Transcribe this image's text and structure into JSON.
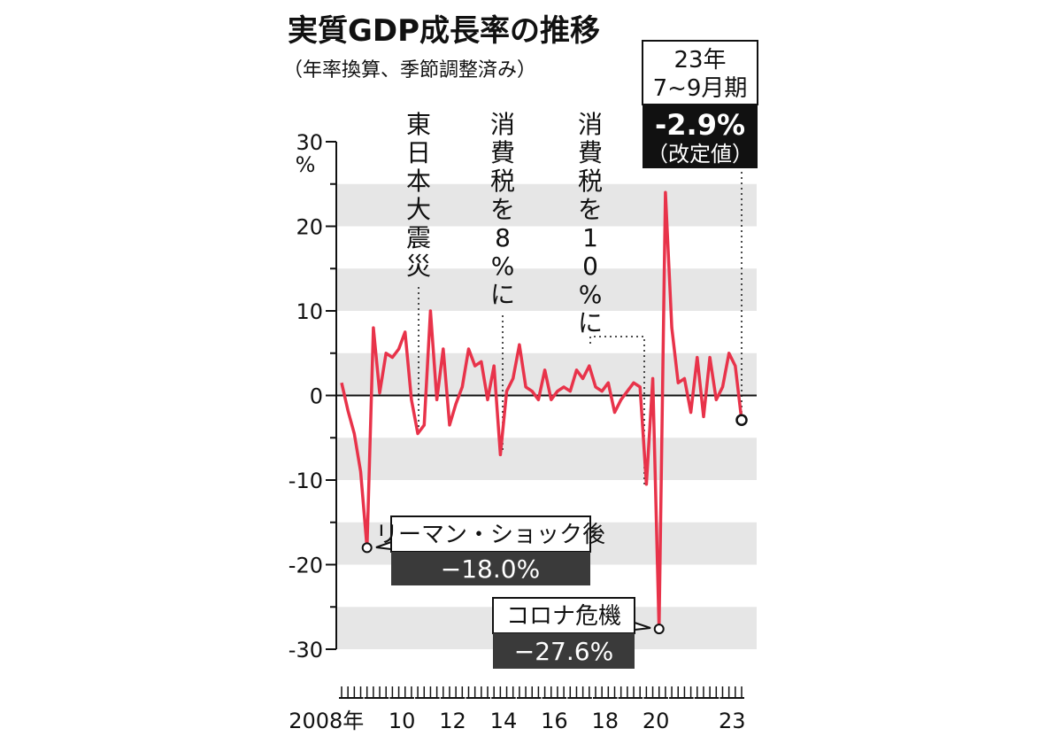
{
  "chart_data": {
    "type": "line",
    "title": "実質GDP成長率の推移",
    "subtitle": "（年率換算、季節調整済み）",
    "ylabel": "%",
    "ylim": [
      -30,
      30
    ],
    "yticks": [
      "30",
      "20",
      "10",
      "0",
      "-10",
      "-20",
      "-30"
    ],
    "xlabels": [
      "2008年",
      "10",
      "12",
      "14",
      "16",
      "18",
      "20",
      "23"
    ],
    "start_year": 2008,
    "grid": "horizontal bands",
    "line_color": "#e8334a",
    "series": [
      {
        "values": [
          1.5,
          -1.8,
          -4.5,
          -9.0,
          -18.0,
          8.0,
          0.3,
          5.0,
          4.5,
          5.5,
          7.5,
          -0.5,
          -4.5,
          -3.5,
          10.0,
          -0.5,
          5.5,
          -3.5,
          -1.0,
          1.0,
          5.5,
          3.5,
          4.0,
          -0.5,
          3.5,
          -7.0,
          0.5,
          2.0,
          6.0,
          1.0,
          0.5,
          -0.5,
          3.0,
          -0.5,
          0.5,
          1.0,
          0.5,
          3.0,
          2.0,
          3.5,
          1.0,
          0.5,
          1.5,
          -2.0,
          -0.5,
          0.5,
          1.5,
          1.0,
          -10.5,
          2.0,
          -27.6,
          24.0,
          8.0,
          1.5,
          2.0,
          -2.0,
          4.5,
          -2.5,
          4.5,
          -0.5,
          1.0,
          5.0,
          3.5,
          -2.9
        ]
      }
    ],
    "annotations": {
      "event_1": "東日本大震災",
      "event_2": "消費税を8%に",
      "event_3": "消費税を10%に",
      "lehman_label": "リーマン・ショック後",
      "lehman_value": "−18.0%",
      "corona_label": "コロナ危機",
      "corona_value": "−27.6%",
      "latest_period_1": "23年",
      "latest_period_2": "7~9月期",
      "latest_value": "-2.9%",
      "latest_note": "（改定値）"
    }
  }
}
